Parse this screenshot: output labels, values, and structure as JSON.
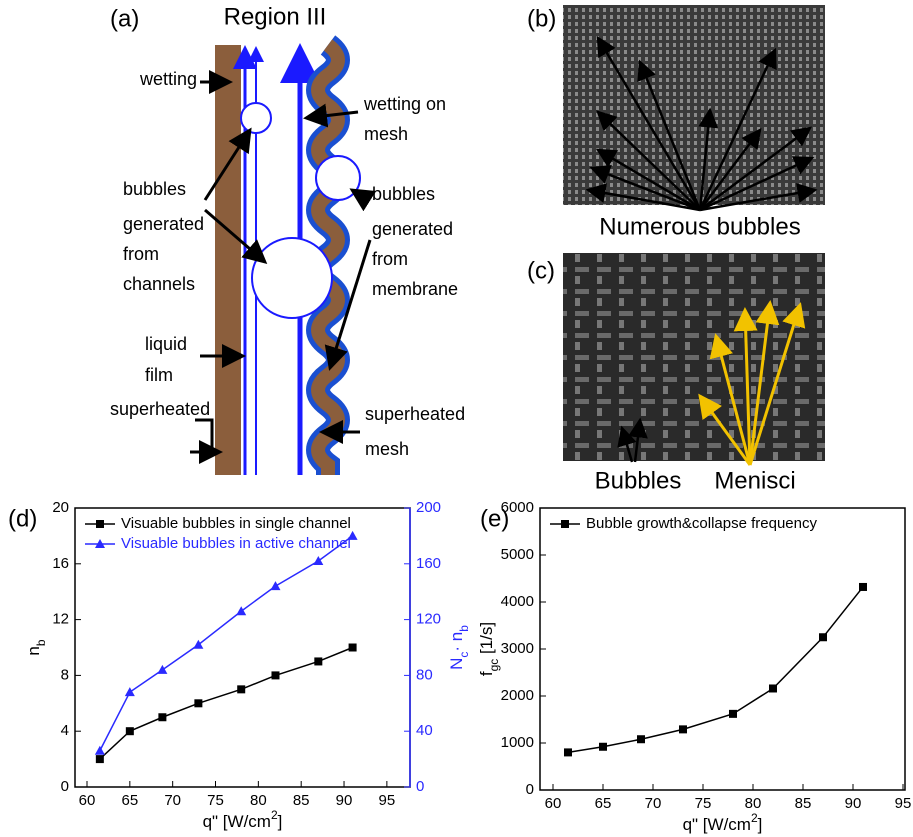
{
  "diagram": {
    "label": "(a)",
    "title": "Region III",
    "annotations": [
      "wetting",
      "wetting on",
      "mesh",
      "bubbles",
      "generated",
      "from",
      "channels",
      "bubbles",
      "generated",
      "from",
      "membrane",
      "liquid",
      "film",
      "superheated",
      "superheated",
      "mesh"
    ]
  },
  "photo_b": {
    "label": "(b)",
    "caption": "Numerous bubbles"
  },
  "photo_c": {
    "label": "(c)",
    "captions": [
      "Bubbles",
      "Menisci"
    ]
  },
  "chart_data": [
    {
      "label": "(d)",
      "type": "line",
      "xlabel": [
        "q\" [W/cm",
        "2",
        "]"
      ],
      "ylabel": [
        "n",
        "b"
      ],
      "y2label": [
        "N",
        "c",
        "· n",
        "b"
      ],
      "xlim": [
        58.6,
        97.7
      ],
      "xticks": [
        60,
        65,
        70,
        75,
        80,
        85,
        90,
        95
      ],
      "ylim": [
        0,
        20
      ],
      "yticks": [
        0,
        4,
        8,
        12,
        16,
        20
      ],
      "y2lim": [
        0,
        200
      ],
      "y2ticks": [
        0,
        40,
        80,
        120,
        160,
        200
      ],
      "x": [
        61.5,
        65,
        68.8,
        73,
        78,
        82,
        87,
        91
      ],
      "legend": "upper left",
      "series": [
        {
          "name": "Visuable bubbles in single channel",
          "color": "#000000",
          "marker": "square",
          "values": [
            2,
            4,
            5,
            6,
            7,
            8,
            9,
            10
          ]
        },
        {
          "name": "Visuable bubbles in active channel",
          "color": "#2a2aff",
          "marker": "triangle",
          "axis": "y2",
          "values": [
            26,
            68,
            84,
            102,
            126,
            144,
            162,
            180
          ]
        }
      ]
    },
    {
      "label": "(e)",
      "type": "line",
      "xlabel": [
        "q\" [W/cm",
        "2",
        "]"
      ],
      "ylabel": [
        "f",
        "gc",
        " [1/s]"
      ],
      "xlim": [
        58.7,
        95.2
      ],
      "xticks": [
        60,
        65,
        70,
        75,
        80,
        85,
        90,
        95
      ],
      "ylim": [
        0,
        6000
      ],
      "yticks": [
        0,
        1000,
        2000,
        3000,
        4000,
        5000,
        6000
      ],
      "x": [
        61.5,
        65,
        68.8,
        73,
        78,
        82,
        87,
        91
      ],
      "legend": "upper left",
      "series": [
        {
          "name": "Bubble growth&collapse frequency",
          "color": "#000000",
          "marker": "square",
          "values": [
            800,
            920,
            1080,
            1290,
            1620,
            2160,
            3250,
            4320
          ]
        }
      ]
    }
  ]
}
